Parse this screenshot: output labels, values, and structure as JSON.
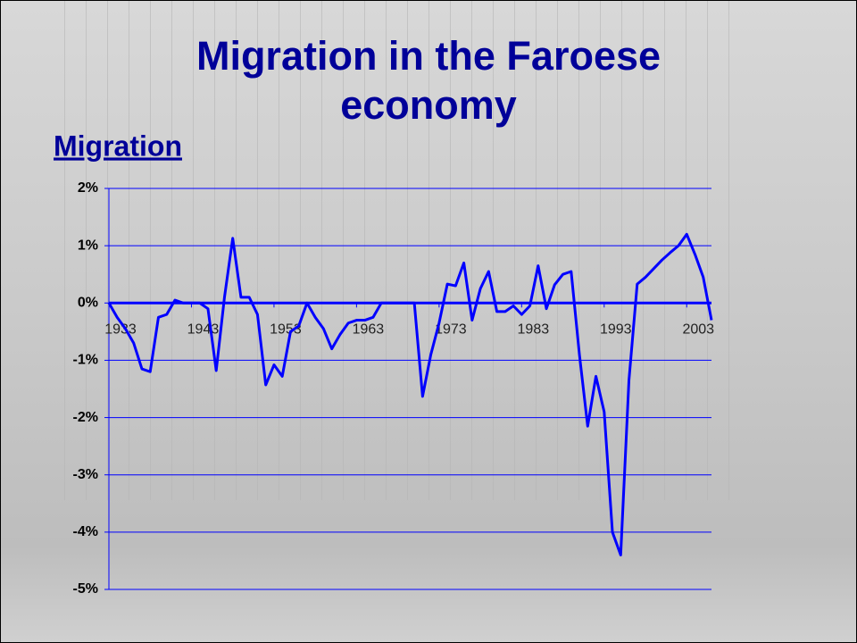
{
  "chart_data": {
    "type": "line",
    "title": "Migration in the Faroese economy",
    "subtitle": "Migration",
    "x": [
      1933,
      1934,
      1935,
      1936,
      1937,
      1938,
      1939,
      1940,
      1941,
      1942,
      1943,
      1944,
      1945,
      1946,
      1947,
      1948,
      1949,
      1950,
      1951,
      1952,
      1953,
      1954,
      1955,
      1956,
      1957,
      1958,
      1959,
      1960,
      1961,
      1962,
      1963,
      1964,
      1965,
      1966,
      1967,
      1968,
      1969,
      1970,
      1971,
      1972,
      1973,
      1974,
      1975,
      1976,
      1977,
      1978,
      1979,
      1980,
      1981,
      1982,
      1983,
      1984,
      1985,
      1986,
      1987,
      1988,
      1989,
      1990,
      1991,
      1992,
      1993,
      1994,
      1995,
      1996,
      1997,
      1998,
      1999,
      2000,
      2001,
      2002,
      2003,
      2004,
      2005,
      2006
    ],
    "series": [
      {
        "name": "Migration",
        "color": "#0000ff",
        "values": [
          0,
          -0.25,
          -0.45,
          -0.7,
          -1.15,
          -1.2,
          -0.25,
          -0.2,
          0.05,
          0,
          0,
          0,
          -0.1,
          -1.18,
          0.1,
          1.13,
          0.1,
          0.1,
          -0.2,
          -1.43,
          -1.08,
          -1.28,
          -0.5,
          -0.4,
          0,
          -0.25,
          -0.45,
          -0.8,
          -0.55,
          -0.35,
          -0.3,
          -0.3,
          -0.25,
          0,
          0,
          0,
          0,
          0,
          -1.63,
          -0.9,
          -0.35,
          0.33,
          0.3,
          0.7,
          -0.3,
          0.25,
          0.55,
          -0.15,
          -0.15,
          -0.05,
          -0.2,
          -0.05,
          0.65,
          -0.1,
          0.32,
          0.5,
          0.55,
          -0.9,
          -2.15,
          -1.28,
          -1.9,
          -4.0,
          -4.4,
          -1.35,
          0.33,
          0.45,
          0.6,
          0.75,
          0.88,
          1.0,
          1.2,
          0.85,
          0.45,
          -0.3
        ]
      }
    ],
    "xlim": [
      1933,
      2006
    ],
    "xticks": [
      1933,
      1943,
      1953,
      1963,
      1973,
      1983,
      1993,
      2003
    ],
    "ylim": [
      -5,
      2
    ],
    "yticks": [
      {
        "value": -5,
        "label": "-5%"
      },
      {
        "value": -4,
        "label": "-4%"
      },
      {
        "value": -3,
        "label": "-3%"
      },
      {
        "value": -2,
        "label": "-2%"
      },
      {
        "value": -1,
        "label": "-1%"
      },
      {
        "value": 0,
        "label": "0%"
      },
      {
        "value": 1,
        "label": "1%"
      },
      {
        "value": 2,
        "label": "2%"
      }
    ],
    "grid": true
  }
}
